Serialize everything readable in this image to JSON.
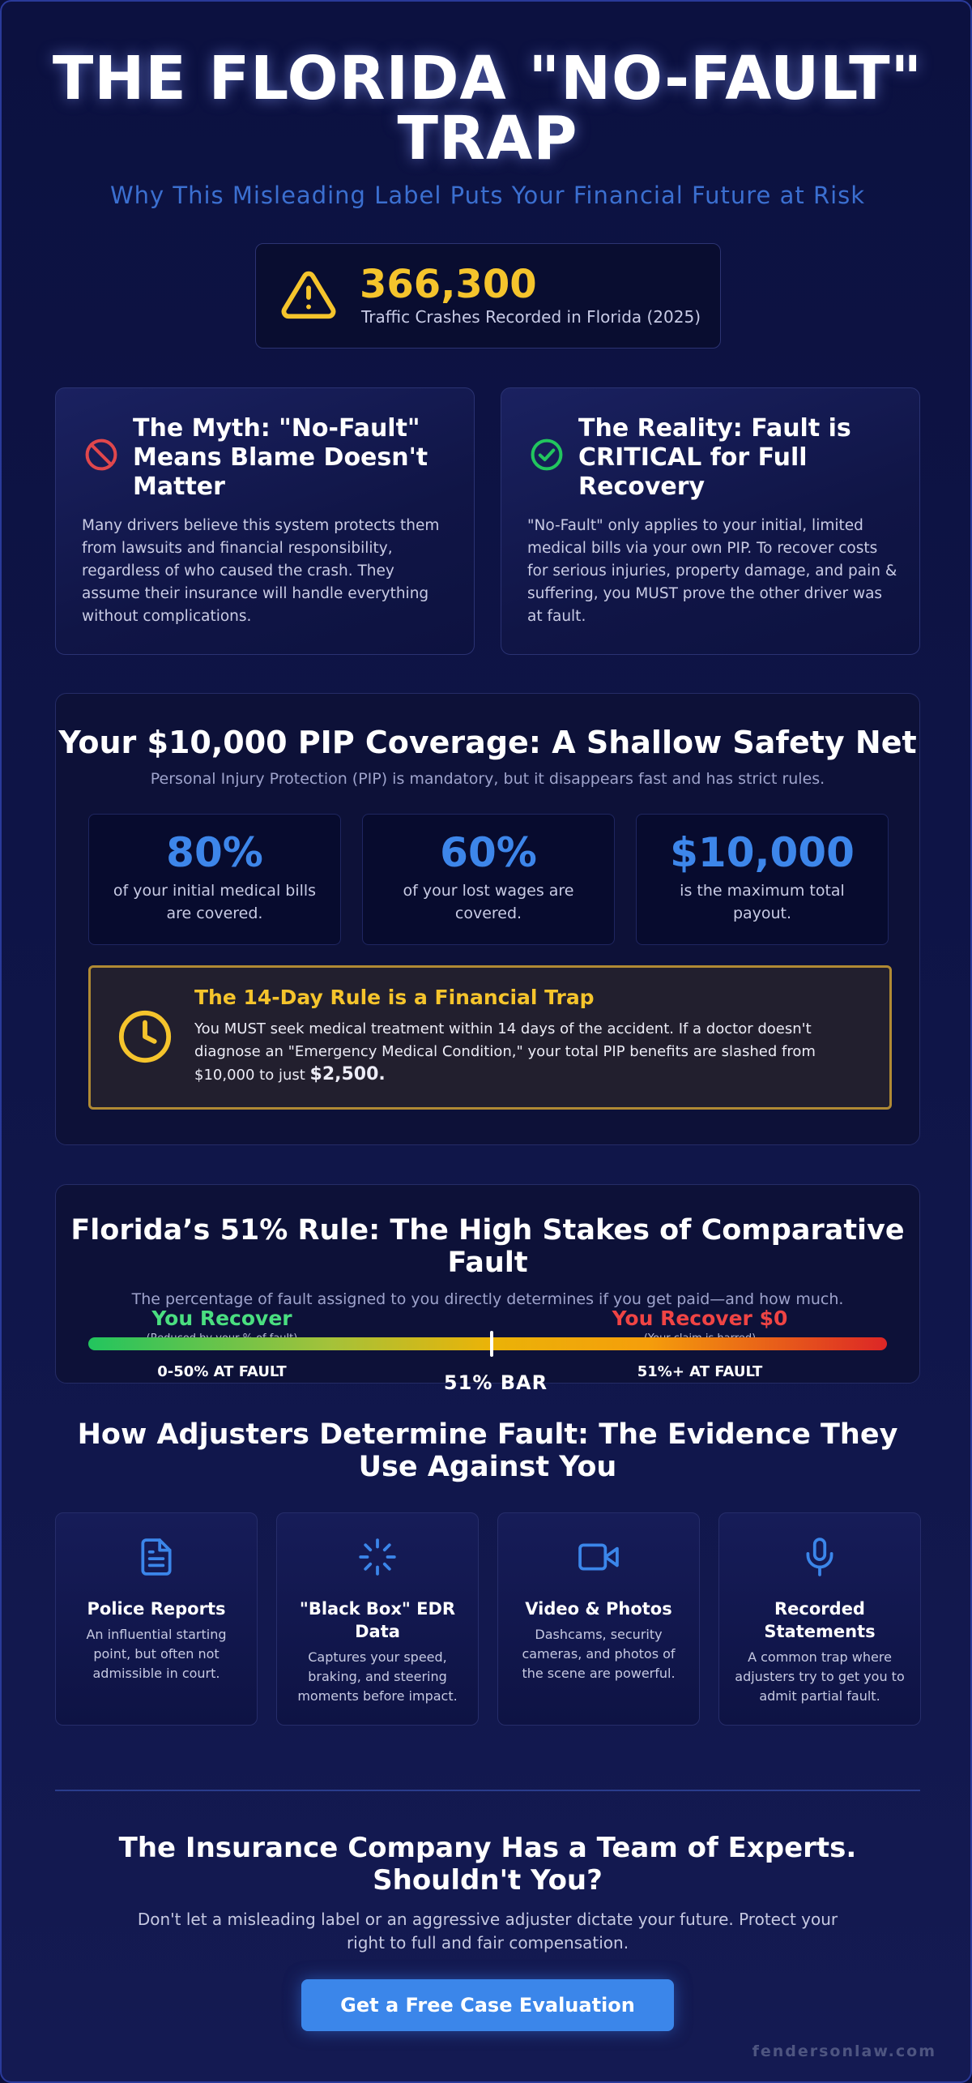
{
  "header": {
    "title": "THE FLORIDA \"NO-FAULT\" TRAP",
    "subtitle": "Why This Misleading Label Puts Your Financial Future at Risk"
  },
  "stat": {
    "icon": "warning-triangle-icon",
    "number": "366,300",
    "label": "Traffic Crashes Recorded in Florida (2025)"
  },
  "myth": {
    "icon": "prohibited-icon",
    "title": "The Myth: \"No-Fault\" Means Blame Doesn't Matter",
    "body": "Many drivers believe this system protects them from lawsuits and financial responsibility, regardless of who caused the crash. They assume their insurance will handle everything without complications."
  },
  "reality": {
    "icon": "check-circle-icon",
    "title": "The Reality: Fault is CRITICAL for Full Recovery",
    "body": "\"No-Fault\" only applies to your initial, limited medical bills via your own PIP. To recover costs for serious injuries, property damage, and pain & suffering, you MUST prove the other driver was at fault."
  },
  "pip": {
    "title": "Your $10,000 PIP Coverage: A Shallow Safety Net",
    "subtitle": "Personal Injury Protection (PIP) is mandatory, but it disappears fast and has strict rules.",
    "stats": [
      {
        "value": "80%",
        "desc": "of your initial medical bills are covered."
      },
      {
        "value": "60%",
        "desc": "of your lost wages are covered."
      },
      {
        "value": "$10,000",
        "desc": "is the maximum total payout."
      }
    ],
    "warning": {
      "icon": "clock-icon",
      "title": "The 14-Day Rule is a Financial Trap",
      "body": "You MUST seek medical treatment within 14 days of the accident. If a doctor doesn't diagnose an \"Emergency Medical Condition,\" your total PIP benefits are slashed from $10,000 to just ",
      "highlight": "$2,500."
    }
  },
  "fault": {
    "title": "Florida’s 51% Rule: The High Stakes of Comparative Fault",
    "subtitle": "The percentage of fault assigned to you directly determines if you get paid—and how much.",
    "left_head": "You Recover",
    "left_note": "(Reduced by your % of fault)",
    "left_range": "0-50% AT FAULT",
    "right_head": "You Recover $0",
    "right_note": "(Your claim is barred)",
    "right_range": "51%+ AT FAULT",
    "bar_label": "51% BAR",
    "threshold_percent": 51
  },
  "evidence": {
    "title": "How Adjusters Determine Fault: The Evidence They Use Against You",
    "items": [
      {
        "icon": "document-icon",
        "title": "Police Reports",
        "desc": "An influential starting point, but often not admissible in court."
      },
      {
        "icon": "loading-spinner-icon",
        "title": "\"Black Box\" EDR Data",
        "desc": "Captures your speed, braking, and steering moments before impact."
      },
      {
        "icon": "video-camera-icon",
        "title": "Video & Photos",
        "desc": "Dashcams, security cameras, and photos of the scene are powerful."
      },
      {
        "icon": "microphone-icon",
        "title": "Recorded Statements",
        "desc": "A common trap where adjusters try to get you to admit partial fault."
      }
    ]
  },
  "cta": {
    "title": "The Insurance Company Has a Team of Experts. Shouldn't You?",
    "body": "Don't let a misleading label or an aggressive adjuster dictate your future. Protect your right to full and fair compensation.",
    "button": "Get a Free Case Evaluation"
  },
  "footer": {
    "brand": "fendersonlaw.com"
  },
  "colors": {
    "background": "#0c1140",
    "accent_blue": "#3b86ea",
    "accent_yellow": "#f5c42c",
    "green": "#4ade80",
    "red": "#ef4444"
  }
}
